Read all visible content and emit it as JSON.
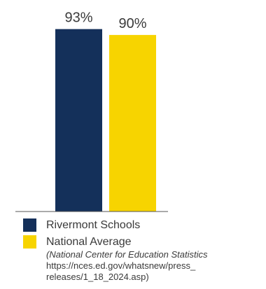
{
  "chart_data": {
    "type": "bar",
    "categories": [
      "Rivermont Schools",
      "National Average"
    ],
    "values": [
      93,
      90
    ],
    "data_labels": [
      "93%",
      "90%"
    ],
    "colors": [
      "#14305a",
      "#f7d400"
    ],
    "title": "",
    "xlabel": "",
    "ylabel": "",
    "ylim": [
      0,
      100
    ],
    "grid": false,
    "legend_position": "bottom-left"
  },
  "legend": {
    "items": [
      {
        "label": "Rivermont Schools",
        "color": "#14305a"
      },
      {
        "label": "National Average",
        "color": "#f7d400"
      }
    ]
  },
  "source": {
    "organization": "(National Center for Education Statistics",
    "url_line1": "https://nces.ed.gov/whatsnew/press_",
    "url_line2": "releases/1_18_2024.asp)"
  }
}
